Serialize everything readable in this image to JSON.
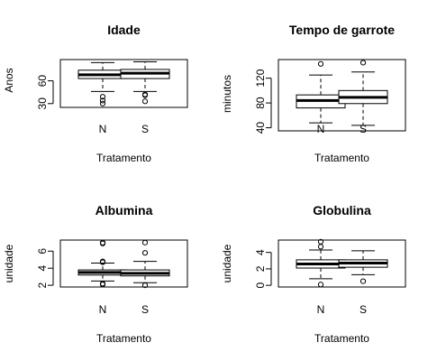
{
  "chart_data": [
    {
      "type": "boxplot",
      "title": "Idade",
      "xlabel": "Tratamento",
      "ylabel": "Anos",
      "ylim": [
        25,
        88
      ],
      "yticks": [
        30,
        60
      ],
      "categories": [
        "N",
        "S"
      ],
      "boxes": [
        {
          "name": "N",
          "min": 46,
          "q1": 63,
          "median": 68,
          "q3": 74,
          "max": 84,
          "outliers": [
            39,
            34,
            30
          ]
        },
        {
          "name": "S",
          "min": 46,
          "q1": 63,
          "median": 70,
          "q3": 75,
          "max": 85,
          "outliers": [
            42,
            41,
            33
          ]
        }
      ]
    },
    {
      "type": "boxplot",
      "title": "Tempo de garrote",
      "xlabel": "Tratamento",
      "ylabel": "minutos",
      "ylim": [
        35,
        150
      ],
      "yticks": [
        40,
        80,
        120
      ],
      "categories": [
        "N",
        "S"
      ],
      "boxes": [
        {
          "name": "N",
          "min": 48,
          "q1": 72,
          "median": 84,
          "q3": 93,
          "max": 125,
          "outliers": [
            143
          ]
        },
        {
          "name": "S",
          "min": 44,
          "q1": 79,
          "median": 89,
          "q3": 100,
          "max": 130,
          "outliers": [
            145
          ]
        }
      ]
    },
    {
      "type": "boxplot",
      "title": "Albumina",
      "xlabel": "Tratamento",
      "ylabel": "unidade",
      "ylim": [
        1.8,
        7.3
      ],
      "yticks": [
        2,
        4,
        6
      ],
      "categories": [
        "N",
        "S"
      ],
      "boxes": [
        {
          "name": "N",
          "min": 2.5,
          "q1": 3.2,
          "median": 3.5,
          "q3": 3.8,
          "max": 4.6,
          "outliers": [
            7.0,
            6.9,
            4.8,
            4.7,
            2.2,
            2.1
          ]
        },
        {
          "name": "S",
          "min": 2.3,
          "q1": 3.1,
          "median": 3.4,
          "q3": 3.8,
          "max": 4.8,
          "outliers": [
            7.0,
            5.8,
            2.0
          ]
        }
      ]
    },
    {
      "type": "boxplot",
      "title": "Globulina",
      "xlabel": "Tratamento",
      "ylabel": "unidade",
      "ylim": [
        -0.2,
        5.5
      ],
      "yticks": [
        0,
        2,
        4
      ],
      "categories": [
        "N",
        "S"
      ],
      "boxes": [
        {
          "name": "N",
          "min": 0.8,
          "q1": 2.1,
          "median": 2.6,
          "q3": 3.1,
          "max": 4.3,
          "outliers": [
            5.3,
            4.7,
            0.1
          ]
        },
        {
          "name": "S",
          "min": 1.3,
          "q1": 2.2,
          "median": 2.7,
          "q3": 3.1,
          "max": 4.2,
          "outliers": [
            0.5
          ]
        }
      ]
    }
  ]
}
